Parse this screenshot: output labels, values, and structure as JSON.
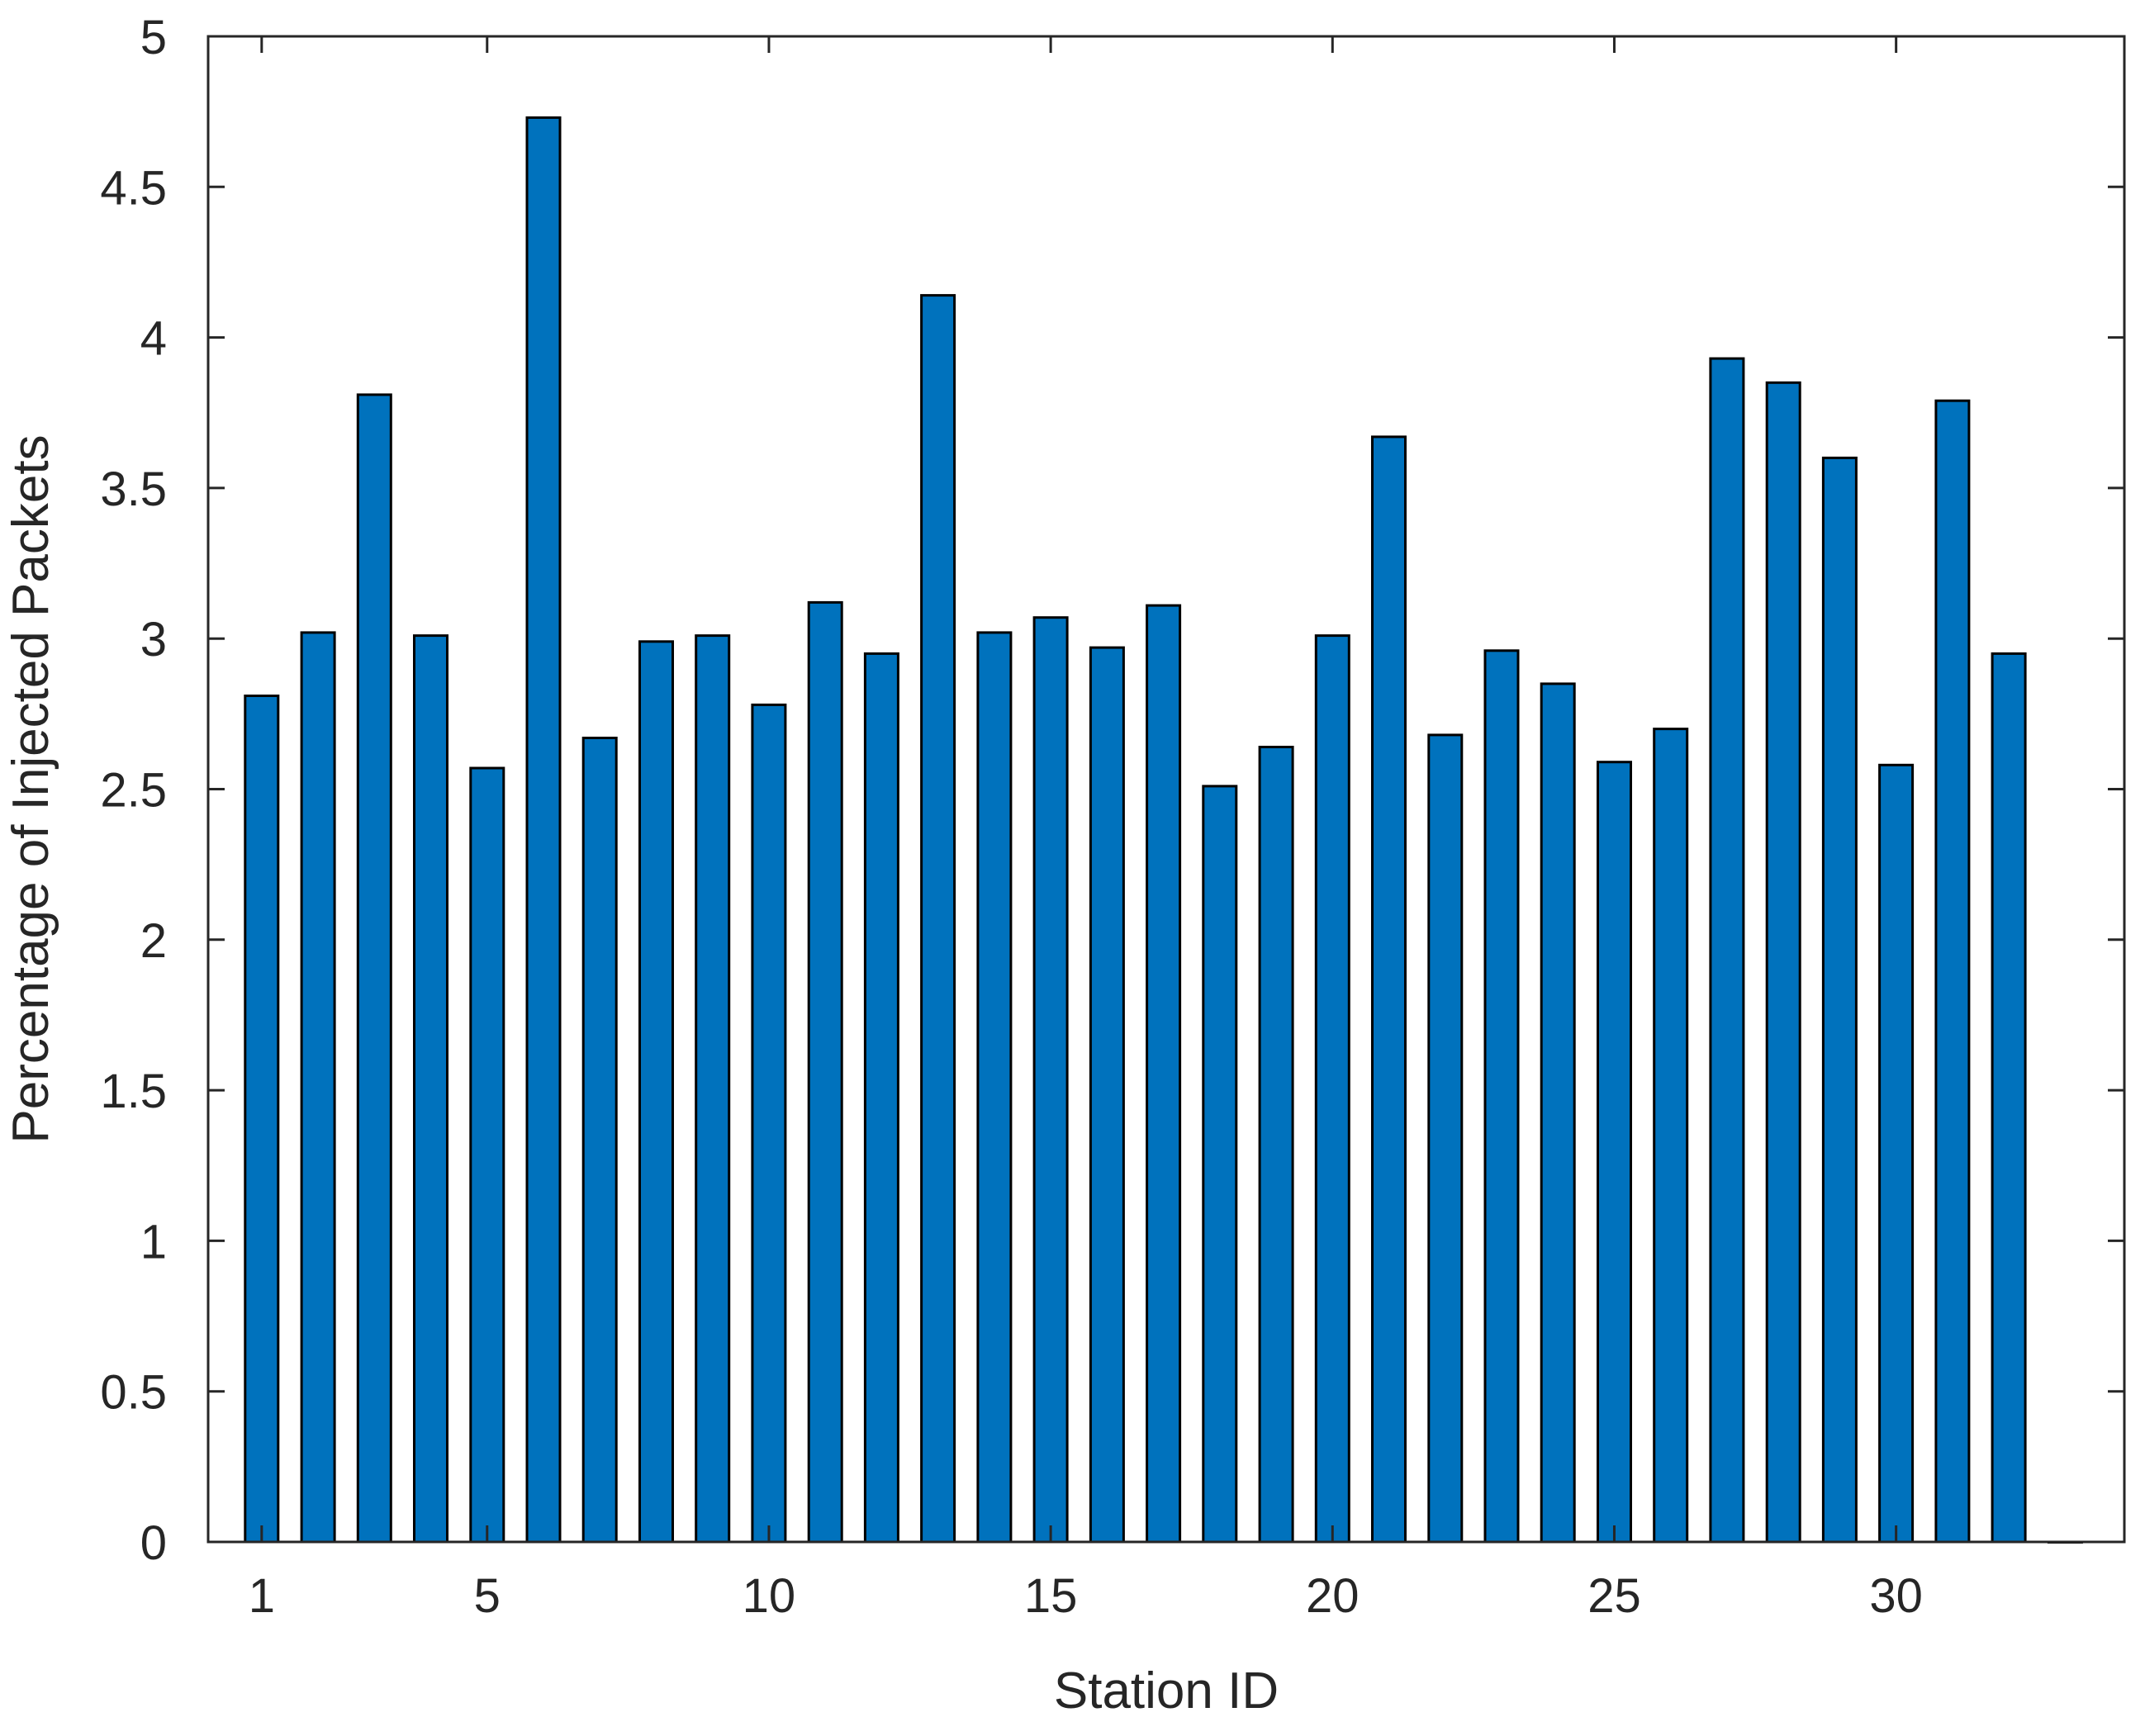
{
  "chart_data": {
    "type": "bar",
    "title": "",
    "xlabel": "Station ID",
    "ylabel": "Percentage of Injected Packets",
    "x": [
      1,
      2,
      3,
      4,
      5,
      6,
      7,
      8,
      9,
      10,
      11,
      12,
      13,
      14,
      15,
      16,
      17,
      18,
      19,
      20,
      21,
      22,
      23,
      24,
      25,
      26,
      27,
      28,
      29,
      30,
      31,
      32,
      33
    ],
    "values": [
      2.81,
      3.02,
      3.81,
      3.01,
      2.57,
      4.73,
      2.67,
      2.99,
      3.01,
      2.78,
      3.12,
      2.95,
      4.14,
      3.02,
      3.07,
      2.97,
      3.11,
      2.51,
      2.64,
      3.01,
      3.67,
      2.68,
      2.96,
      2.85,
      2.59,
      2.7,
      3.93,
      3.85,
      3.6,
      2.58,
      3.79,
      2.95,
      0
    ],
    "xlim": [
      0.05,
      34.05
    ],
    "ylim": [
      0,
      5
    ],
    "xticks": [
      "1",
      "5",
      "10",
      "15",
      "20",
      "25",
      "30"
    ],
    "xtick_values": [
      1,
      5,
      10,
      15,
      20,
      25,
      30
    ],
    "yticks": [
      "0",
      "0.5",
      "1",
      "1.5",
      "2",
      "2.5",
      "3",
      "3.5",
      "4",
      "4.5",
      "5"
    ],
    "ytick_values": [
      0,
      0.5,
      1,
      1.5,
      2,
      2.5,
      3,
      3.5,
      4,
      4.5,
      5
    ],
    "bar_color": "#0072BD",
    "edge_color": "#000000",
    "grid": false,
    "box": true
  }
}
